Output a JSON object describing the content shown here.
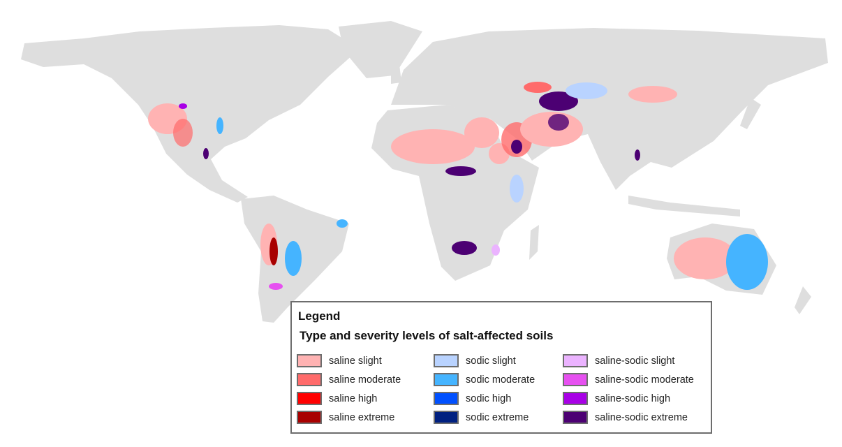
{
  "legend": {
    "heading": "Legend",
    "title": "Type and severity levels of salt-affected soils",
    "columns": [
      {
        "items": [
          {
            "label": "saline slight",
            "color": "#ffb3b3"
          },
          {
            "label": "saline moderate",
            "color": "#ff6b6b"
          },
          {
            "label": "saline high",
            "color": "#ff0000"
          },
          {
            "label": "saline extreme",
            "color": "#a80000"
          }
        ]
      },
      {
        "items": [
          {
            "label": "sodic slight",
            "color": "#b9d3ff"
          },
          {
            "label": "sodic moderate",
            "color": "#45b4ff"
          },
          {
            "label": "sodic high",
            "color": "#0050ff"
          },
          {
            "label": "sodic extreme",
            "color": "#002080"
          }
        ]
      },
      {
        "items": [
          {
            "label": "saline-sodic slight",
            "color": "#ebb3ff"
          },
          {
            "label": "saline-sodic moderate",
            "color": "#e650f0"
          },
          {
            "label": "saline-sodic high",
            "color": "#a800e6"
          },
          {
            "label": "saline-sodic extreme",
            "color": "#4c0073"
          }
        ]
      }
    ]
  },
  "colors": {
    "land": "#dedede",
    "water": "#ffffff"
  }
}
